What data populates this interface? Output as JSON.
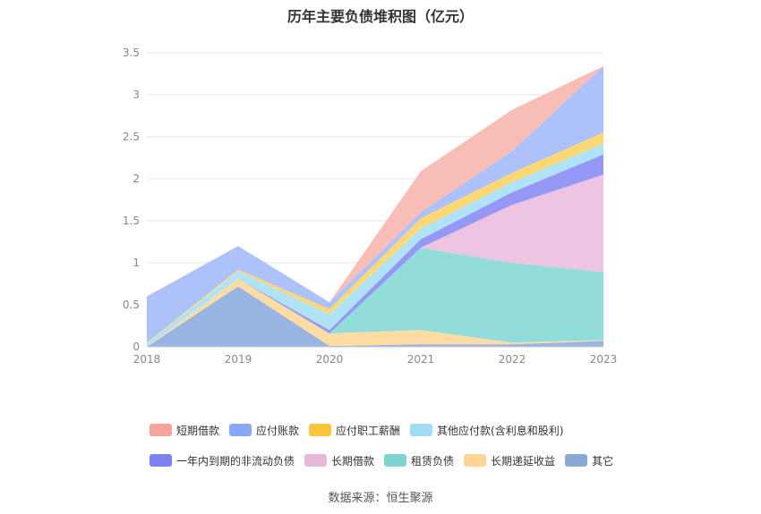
{
  "chart_data": {
    "type": "area",
    "stacked": true,
    "title": "历年主要负债堆积图（亿元）",
    "source": "数据来源：恒生聚源",
    "categories": [
      "2018",
      "2019",
      "2020",
      "2021",
      "2022",
      "2023"
    ],
    "yticks": [
      "0",
      "0.5",
      "1",
      "1.5",
      "2",
      "2.5",
      "3",
      "3.5"
    ],
    "ylim": [
      0,
      3.5
    ],
    "legend_position": "bottom",
    "grid": true,
    "series": [
      {
        "name": "其它",
        "color": "#8eaee0",
        "values": [
          0.0,
          0.72,
          0.01,
          0.03,
          0.03,
          0.07
        ]
      },
      {
        "name": "长期递延收益",
        "color": "#ffd99a",
        "values": [
          0.0,
          0.09,
          0.15,
          0.17,
          0.02,
          0.01
        ]
      },
      {
        "name": "租赁负债",
        "color": "#89dad7",
        "values": [
          0.0,
          0.0,
          0.0,
          0.98,
          0.95,
          0.81
        ]
      },
      {
        "name": "长期借款",
        "color": "#edbfe0",
        "values": [
          0.0,
          0.0,
          0.0,
          0.0,
          0.69,
          1.16
        ]
      },
      {
        "name": "一年内到期的非流动负债",
        "color": "#8d8ff5",
        "values": [
          0.0,
          0.0,
          0.04,
          0.1,
          0.15,
          0.24
        ]
      },
      {
        "name": "其他应付款(含利息和股利)",
        "color": "#a9e1f7",
        "values": [
          0.04,
          0.09,
          0.19,
          0.13,
          0.12,
          0.13
        ]
      },
      {
        "name": "应付职工薪酬",
        "color": "#ffd56a",
        "values": [
          0.01,
          0.02,
          0.06,
          0.12,
          0.11,
          0.13
        ]
      },
      {
        "name": "应付账款",
        "color": "#a6bdfb",
        "values": [
          0.55,
          0.28,
          0.08,
          0.07,
          0.26,
          0.79
        ]
      },
      {
        "name": "短期借款",
        "color": "#f9b7b2",
        "values": [
          0.0,
          0.0,
          0.0,
          0.49,
          0.49,
          0.0
        ]
      }
    ],
    "legend_order": [
      {
        "name": "短期借款",
        "color": "#f7a39d"
      },
      {
        "name": "应付账款",
        "color": "#8aa6f6"
      },
      {
        "name": "应付职工薪酬",
        "color": "#fdc53d"
      },
      {
        "name": "其他应付款(含利息和股利)",
        "color": "#a0dcf6"
      },
      {
        "name": "一年内到期的非流动负债",
        "color": "#7c81f1"
      },
      {
        "name": "长期借款",
        "color": "#e8b8d8"
      },
      {
        "name": "租赁负债",
        "color": "#7fd3d2"
      },
      {
        "name": "长期递延收益",
        "color": "#ffd595"
      },
      {
        "name": "其它",
        "color": "#8aaad6"
      }
    ]
  }
}
